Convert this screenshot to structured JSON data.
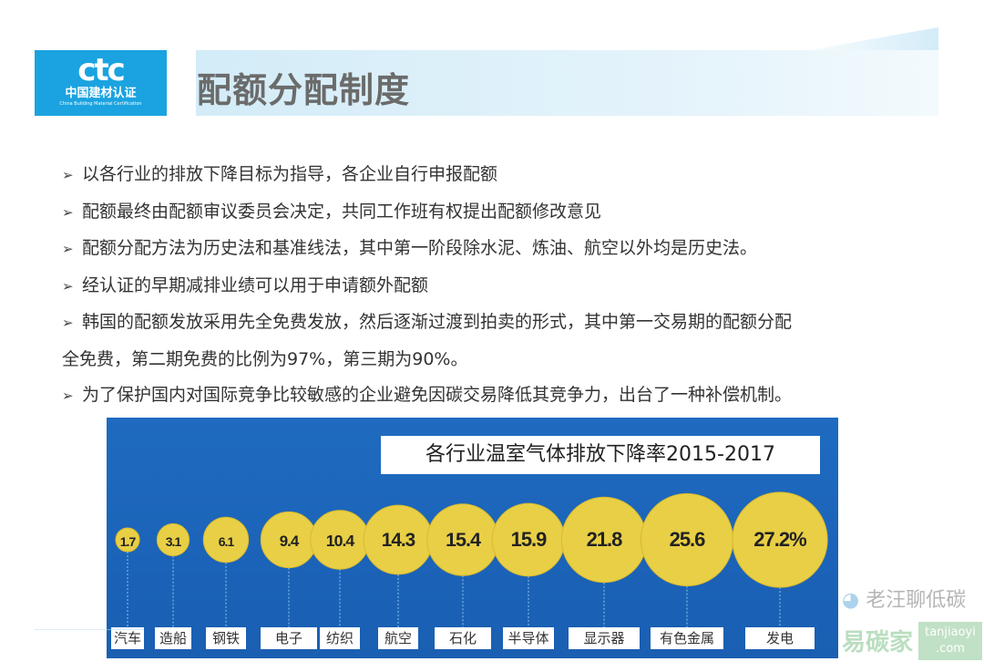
{
  "header": {
    "title": "配额分配制度",
    "logo": {
      "mark": "ctc",
      "cn": "中国建材认证",
      "en": "China Building Material Certification"
    },
    "accent": "#1aa3e0"
  },
  "bullets": [
    {
      "text": "以各行业的排放下降目标为指导，各企业自行申报配额"
    },
    {
      "text": "配额最终由配额审议委员会决定，共同工作班有权提出配额修改意见"
    },
    {
      "text": "配额分配方法为历史法和基准线法，其中第一阶段除水泥、炼油、航空以外均是历史法。"
    },
    {
      "text": "经认证的早期减排业绩可以用于申请额外配额"
    },
    {
      "text": "韩国的配额发放采用先全免费发放，然后逐渐过渡到拍卖的形式，其中第一交易期的配额分配",
      "cont": "全免费，第二期免费的比例为97%，第三期为90%。"
    },
    {
      "text": "为了保护国内对国际竞争比较敏感的企业避免因碳交易降低其竞争力，出台了一种补偿机制。"
    }
  ],
  "bullet_marker": "➢",
  "chart_data": {
    "type": "bubble",
    "title": "各行业温室气体排放下降率2015-2017",
    "categories": [
      "汽车",
      "造船",
      "钢铁",
      "电子",
      "纺织",
      "航空",
      "石化",
      "半导体",
      "显示器",
      "有色金属",
      "发电"
    ],
    "values": [
      1.7,
      3.1,
      6.1,
      9.4,
      10.4,
      14.3,
      15.4,
      15.9,
      21.8,
      25.6,
      27.2
    ],
    "value_labels": [
      "1.7",
      "3.1",
      "6.1",
      "9.4",
      "10.4",
      "14.3",
      "15.4",
      "15.9",
      "21.8",
      "25.6",
      "27.2%"
    ],
    "unit": "%",
    "colors": {
      "background": "#1d66bb",
      "bubble": "#e8cf45",
      "label_bg": "#ffffff"
    }
  },
  "watermark": {
    "wechat": "老汪聊低碳",
    "brand": "易碳家",
    "site": "tanjiaoyi",
    "domain": ".com"
  }
}
